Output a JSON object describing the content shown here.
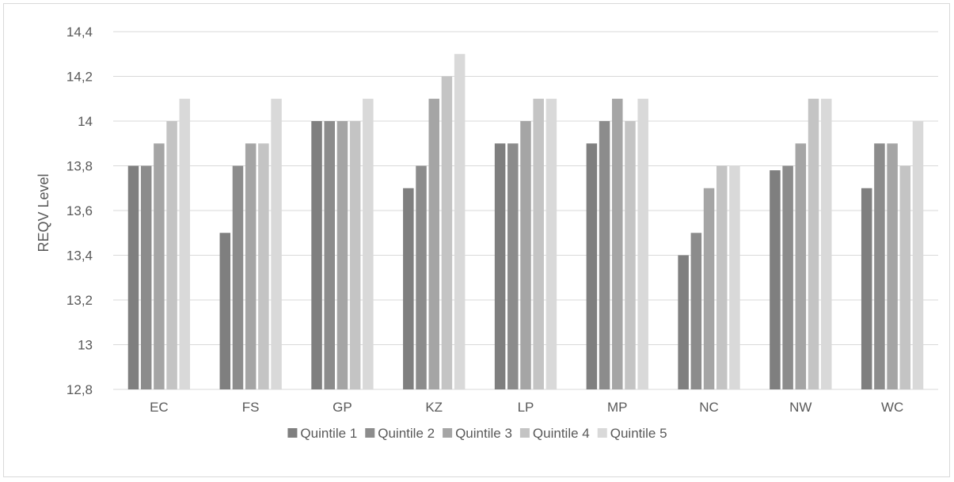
{
  "chart_data": {
    "type": "bar",
    "title": "",
    "xlabel": "",
    "ylabel": "REQV Level",
    "ylim": [
      12.8,
      14.4
    ],
    "yticks": [
      12.8,
      13,
      13.2,
      13.4,
      13.6,
      13.8,
      14,
      14.2,
      14.4
    ],
    "ytick_labels": [
      "12,8",
      "13",
      "13,2",
      "13,4",
      "13,6",
      "13,8",
      "14",
      "14,2",
      "14,4"
    ],
    "categories": [
      "EC",
      "FS",
      "GP",
      "KZ",
      "LP",
      "MP",
      "NC",
      "NW",
      "WC"
    ],
    "series": [
      {
        "name": "Quintile 1",
        "color": "#7f7f7f",
        "values": [
          13.8,
          13.5,
          14.0,
          13.7,
          13.9,
          13.9,
          13.4,
          13.78,
          13.7
        ]
      },
      {
        "name": "Quintile 2",
        "color": "#8c8c8c",
        "values": [
          13.8,
          13.8,
          14.0,
          13.8,
          13.9,
          14.0,
          13.5,
          13.8,
          13.9
        ]
      },
      {
        "name": "Quintile 3",
        "color": "#a5a5a5",
        "values": [
          13.9,
          13.9,
          14.0,
          14.1,
          14.0,
          14.1,
          13.7,
          13.9,
          13.9
        ]
      },
      {
        "name": "Quintile 4",
        "color": "#c4c4c4",
        "values": [
          14.0,
          13.9,
          14.0,
          14.2,
          14.1,
          14.0,
          13.8,
          14.1,
          13.8
        ]
      },
      {
        "name": "Quintile 5",
        "color": "#d9d9d9",
        "values": [
          14.1,
          14.1,
          14.1,
          14.3,
          14.1,
          14.1,
          13.8,
          14.1,
          14.0
        ]
      }
    ],
    "grid": true,
    "legend_position": "bottom"
  }
}
